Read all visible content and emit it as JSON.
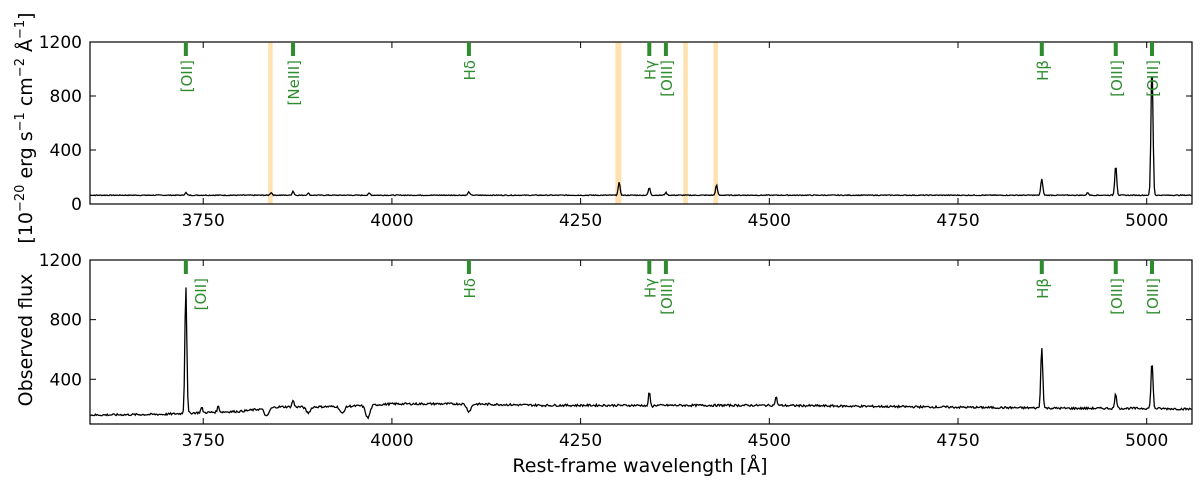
{
  "figure": {
    "ylabel_line1": "[10",
    "ylabel_exp1": "−20",
    "ylabel_line2": " erg s",
    "ylabel_exp2": "−1",
    "ylabel_line3": " cm",
    "ylabel_exp3": "−2",
    "ylabel_line4": " Å",
    "ylabel_exp4": "−1",
    "ylabel_line5": "]",
    "ylabel_bottom": "Observed flux",
    "xlabel": "Rest-frame wavelength [Å]"
  },
  "chart_data": [
    {
      "type": "line",
      "panel": "top",
      "xlim": [
        3600,
        5060
      ],
      "ylim": [
        0,
        1200
      ],
      "xticks": [
        3750,
        4000,
        4250,
        4500,
        4750,
        5000
      ],
      "yticks": [
        0,
        400,
        800,
        1200
      ],
      "line_color": "#000000",
      "highlight_color": "#ffe2b0",
      "highlight_bands": [
        [
          3836,
          3842
        ],
        [
          4296,
          4304
        ],
        [
          4386,
          4392
        ],
        [
          4426,
          4432
        ]
      ],
      "marker_color": "#2e8b2e",
      "lines": [
        {
          "label": "[OII]",
          "x": 3727
        },
        {
          "label": "[NeIII]",
          "x": 3869
        },
        {
          "label": "Hδ",
          "x": 4102
        },
        {
          "label": "Hγ",
          "x": 4341
        },
        {
          "label": "[OIII]",
          "x": 4363
        },
        {
          "label": "Hβ",
          "x": 4861
        },
        {
          "label": "[OIII]",
          "x": 4959
        },
        {
          "label": "[OIII]",
          "x": 5007
        }
      ],
      "baseline": 65,
      "peaks": [
        {
          "x": 3727,
          "y": 85
        },
        {
          "x": 3840,
          "y": 85
        },
        {
          "x": 3869,
          "y": 95
        },
        {
          "x": 3889,
          "y": 80
        },
        {
          "x": 3970,
          "y": 80
        },
        {
          "x": 4102,
          "y": 90
        },
        {
          "x": 4301,
          "y": 160
        },
        {
          "x": 4341,
          "y": 120
        },
        {
          "x": 4363,
          "y": 85
        },
        {
          "x": 4430,
          "y": 140
        },
        {
          "x": 4861,
          "y": 185
        },
        {
          "x": 4922,
          "y": 85
        },
        {
          "x": 4959,
          "y": 290
        },
        {
          "x": 5007,
          "y": 1040
        }
      ]
    },
    {
      "type": "line",
      "panel": "bottom",
      "xlim": [
        3600,
        5060
      ],
      "ylim": [
        100,
        1200
      ],
      "xticks": [
        3750,
        4000,
        4250,
        4500,
        4750,
        5000
      ],
      "yticks": [
        400,
        800,
        1200
      ],
      "line_color": "#000000",
      "marker_color": "#2e8b2e",
      "lines": [
        {
          "label": "[OII]",
          "x": 3727
        },
        {
          "label": "Hδ",
          "x": 4102
        },
        {
          "label": "Hγ",
          "x": 4341
        },
        {
          "label": "[OIII]",
          "x": 4363
        },
        {
          "label": "Hβ",
          "x": 4861
        },
        {
          "label": "[OIII]",
          "x": 4959
        },
        {
          "label": "[OIII]",
          "x": 5007
        }
      ],
      "continuum": [
        [
          3600,
          160
        ],
        [
          3700,
          165
        ],
        [
          3740,
          175
        ],
        [
          3800,
          185
        ],
        [
          3850,
          215
        ],
        [
          3900,
          215
        ],
        [
          3950,
          220
        ],
        [
          4000,
          235
        ],
        [
          4100,
          235
        ],
        [
          4200,
          225
        ],
        [
          4300,
          225
        ],
        [
          4400,
          225
        ],
        [
          4500,
          225
        ],
        [
          4600,
          220
        ],
        [
          4700,
          215
        ],
        [
          4800,
          210
        ],
        [
          4900,
          205
        ],
        [
          5000,
          205
        ],
        [
          5060,
          200
        ]
      ],
      "peaks": [
        {
          "x": 3727,
          "y": 1030
        },
        {
          "x": 3748,
          "y": 210
        },
        {
          "x": 3770,
          "y": 220
        },
        {
          "x": 3869,
          "y": 260
        },
        {
          "x": 4341,
          "y": 330
        },
        {
          "x": 4509,
          "y": 280
        },
        {
          "x": 4861,
          "y": 620
        },
        {
          "x": 4959,
          "y": 305
        },
        {
          "x": 5007,
          "y": 520
        }
      ],
      "dips": [
        {
          "x": 3834,
          "y": 150
        },
        {
          "x": 3889,
          "y": 175
        },
        {
          "x": 3934,
          "y": 170
        },
        {
          "x": 3968,
          "y": 140
        },
        {
          "x": 4102,
          "y": 185
        },
        {
          "x": 4341,
          "y": 205
        }
      ]
    }
  ]
}
